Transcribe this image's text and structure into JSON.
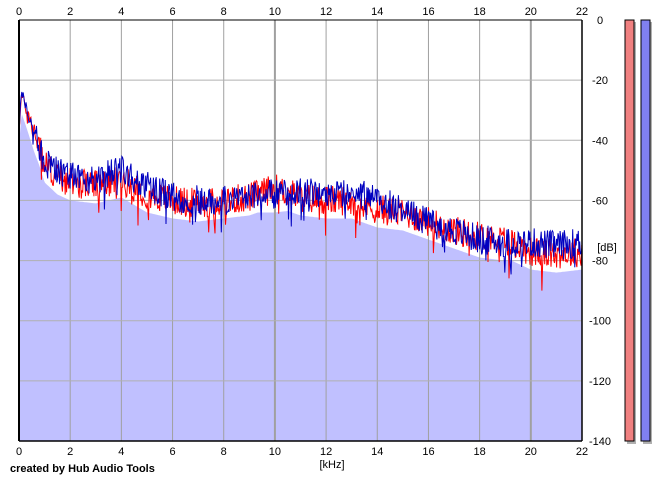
{
  "footer": {
    "credit": "created by Hub Audio Tools"
  },
  "chart_data": {
    "type": "line",
    "xlabel": "[kHz]",
    "ylabel": "[dB]",
    "xlim": [
      0,
      22
    ],
    "ylim": [
      -140,
      0
    ],
    "x_ticks": [
      0,
      2,
      4,
      6,
      8,
      10,
      12,
      14,
      16,
      18,
      20,
      22
    ],
    "x_tick_labels": [
      "0",
      "2",
      "4",
      "6",
      "8",
      "10",
      "12",
      "14",
      "16",
      "18",
      "20",
      "22"
    ],
    "y_ticks": [
      0,
      -20,
      -40,
      -60,
      -80,
      -100,
      -120,
      -140
    ],
    "y_tick_labels": [
      "0",
      "-20",
      "-40",
      "-60",
      "-80",
      "-100",
      "-120",
      "-140"
    ],
    "grid": true,
    "fill_color": "#c0c0ff",
    "series": [
      {
        "color": "#ff0000",
        "x": [
          0,
          0.1,
          0.3,
          0.6,
          1,
          1.5,
          2,
          3,
          4,
          5,
          6,
          7,
          8,
          9,
          10,
          11,
          12,
          13,
          14,
          15,
          16,
          17,
          18,
          19,
          20,
          21,
          22
        ],
        "values": [
          -36,
          -25,
          -30,
          -37,
          -48,
          -52,
          -54,
          -55,
          -53,
          -58,
          -60,
          -61,
          -60,
          -59,
          -56,
          -59,
          -60,
          -60,
          -63,
          -64,
          -67,
          -70,
          -72,
          -73,
          -77,
          -78,
          -77
        ]
      },
      {
        "color": "#0000c0",
        "x": [
          0,
          0.1,
          0.3,
          0.6,
          1,
          1.5,
          2,
          3,
          4,
          5,
          6,
          7,
          8,
          9,
          10,
          11,
          12,
          13,
          14,
          15,
          16,
          17,
          18,
          19,
          20,
          21,
          22
        ],
        "values": [
          -36,
          -24,
          -30,
          -38,
          -47,
          -50,
          -52,
          -53,
          -50,
          -55,
          -59,
          -60,
          -60,
          -58,
          -58,
          -57,
          -58,
          -57,
          -60,
          -63,
          -67,
          -70,
          -73,
          -74,
          -74,
          -75,
          -74
        ]
      }
    ],
    "level_meters": [
      {
        "color": "#f08080",
        "value_db": -140
      },
      {
        "color": "#8080f0",
        "value_db": -140
      }
    ]
  }
}
